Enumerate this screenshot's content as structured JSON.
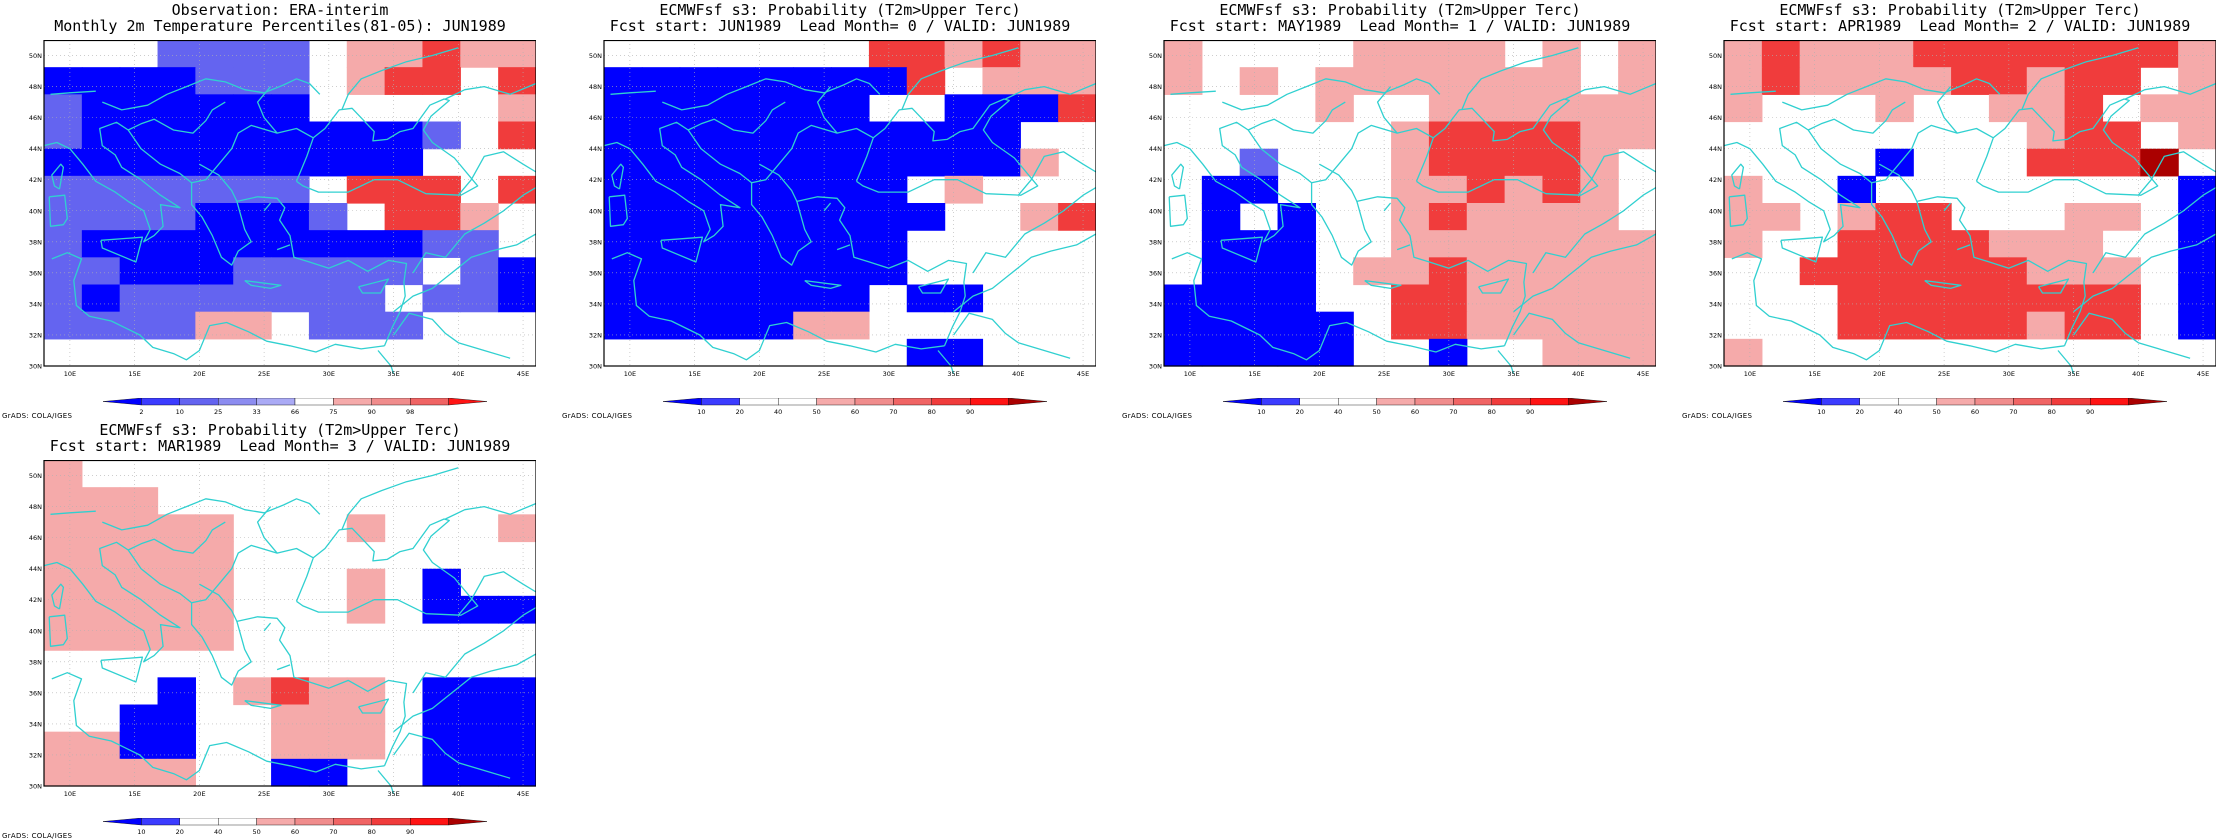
{
  "lat_labels": [
    "50N",
    "48N",
    "46N",
    "44N",
    "42N",
    "40N",
    "38N",
    "36N",
    "34N",
    "32N",
    "30N"
  ],
  "lon_labels": [
    "10E",
    "15E",
    "20E",
    "25E",
    "30E",
    "35E",
    "40E",
    "45E"
  ],
  "footer": "GrADS: COLA/IGES",
  "colors": {
    "coast": "#30d0d0",
    "grid": "#b0b0b0",
    "blue5": "#0000ff",
    "blue4": "#3c3cff",
    "blue3": "#6464f0",
    "blue2": "#8c8cf0",
    "blue1": "#aaaaf5",
    "red1": "#f5aaaa",
    "red2": "#f08c8c",
    "red3": "#f06464",
    "red4": "#f03c3c",
    "red5": "#ff1414",
    "red6": "#aa0000"
  },
  "panels": [
    {
      "title1": "Observation: ERA-interim",
      "title2": "Monthly 2m Temperature Percentiles(81-05): JUN1989",
      "scale": "obs",
      "cbar_labels": [
        "2",
        "10",
        "25",
        "33",
        "66",
        "75",
        "90",
        "98"
      ],
      "grid": [
        "...bbbb.rrRrr",
        "BBBBbbb.rRR.R",
        "bBBBBBB.....r",
        "bBBBBBBBBBb.R",
        "BBBBBBBBBB...",
        "bbbbbbb.RRR.R",
        "bbbbBBBb.RRr.",
        "bBBBBBBBBBbb.",
        "bbBBBbbbbb.bB",
        "bBbbbbbbb.bbB",
        "bbbbrr.bbb...",
        "............."
      ]
    },
    {
      "title1": "ECMWFsf s3: Probability (T2m>Upper Terc)",
      "title2": "Fcst start: JUN1989  Lead Month= 0 / VALID: JUN1989",
      "scale": "prob",
      "cbar_labels": [
        "10",
        "20",
        "40",
        "50",
        "60",
        "70",
        "80",
        "90"
      ],
      "grid": [
        ".......RRrRrr",
        "BBBBBBBBR.rrr",
        "BBBBBBB..BBBR",
        "BBBBBBBBBBB..",
        "BBBBBBBBBBBr.",
        "BBBBBBBB.r...",
        "BBBBBBBBB..rR",
        "BBBBBBBB.....",
        "BBBBBBBB.....",
        "BBBBBBB.BB...",
        "BBBBBrr......",
        "........BB..."
      ]
    },
    {
      "title1": "ECMWFsf s3: Probability (T2m>Upper Terc)",
      "title2": "Fcst start: MAY1989  Lead Month= 1 / VALID: JUN1989",
      "scale": "prob",
      "cbar_labels": [
        "10",
        "20",
        "40",
        "50",
        "60",
        "70",
        "80",
        "90"
      ],
      "grid": [
        "r....rrrr.r.r",
        "r.r.rrrrrrr.r",
        "....r..rrrrrr",
        "......rRRRRrr",
        "..b...rRRRRr.",
        ".BB...rrRrRr.",
        ".B.B..rRrrrr.",
        ".BBB..rrrrrrr",
        ".BBB.rrRrrrrr",
        "BBBB..RRrrrrr",
        "BBBBB.RRrrrrr",
        "BBBBB..B..rrr"
      ]
    },
    {
      "title1": "ECMWFsf s3: Probability (T2m>Upper Terc)",
      "title2": "Fcst start: APR1989  Lead Month= 2 / VALID: JUN1989",
      "scale": "prob",
      "cbar_labels": [
        "10",
        "20",
        "40",
        "50",
        "60",
        "70",
        "80",
        "90"
      ],
      "grid": [
        "rRrrrRRRRRRRr",
        "rRrrrrRRrRR.r",
        "r...r..rrR.rr",
        "........rRR.r",
        "....B...RRRD.",
        "r..B........B",
        "rr.rRR...rr.B",
        "r..RRRRrrr..B",
        "..RRRRRRrrr.B",
        "...RRRRRRRR.B",
        "...RRRRRrRR.B",
        "r............"
      ]
    },
    {
      "title1": "ECMWFsf s3: Probability (T2m>Upper Terc)",
      "title2": "Fcst start: MAR1989  Lead Month= 3 / VALID: JUN1989",
      "scale": "prob",
      "cbar_labels": [
        "10",
        "20",
        "40",
        "50",
        "60",
        "70",
        "80",
        "90"
      ],
      "grid": [
        "r............",
        "rrr..........",
        "rrrrr...r...r",
        "rrrrr........",
        "rrrrr...r.B..",
        "rrrrr...r.BBB",
        "rrrrr.........",
        ".............",
        "...B.rRrr.BBB",
        "..BB..rrr.BBB",
        "rrBB..rrr.BBB",
        "rrrr..BB..BBB"
      ]
    }
  ]
}
